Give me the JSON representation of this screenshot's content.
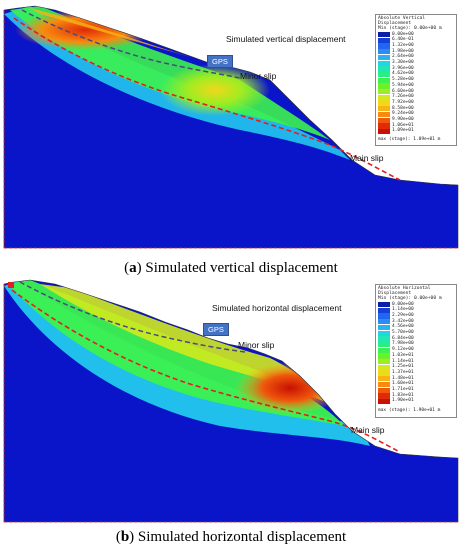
{
  "panels": [
    {
      "caption_letter": "a",
      "caption_text": "Simulated vertical displacement",
      "annotation_title": "Simulated vertical displacement",
      "gps_label": "GPS",
      "minor_slip_label": "Minor slip",
      "main_slip_label": "Main slip",
      "legend": {
        "title": "Absolute Vertical\nDisplacement\nMin (stage): 0.00e+00 m",
        "levels": [
          "0.00e+00",
          "6.40e-01",
          "1.32e+00",
          "1.98e+00",
          "2.64e+00",
          "3.30e+00",
          "3.96e+00",
          "4.62e+00",
          "5.28e+00",
          "5.94e+00",
          "6.60e+00",
          "7.26e+00",
          "7.92e+00",
          "8.58e+00",
          "9.24e+00",
          "9.90e+00",
          "1.06e+01",
          "1.09e+01"
        ],
        "footer": "max (stage): 1.09e+01 m"
      }
    },
    {
      "caption_letter": "b",
      "caption_text": "Simulated horizontal displacement",
      "annotation_title": "Simulated horizontal displacement",
      "gps_label": "GPS",
      "minor_slip_label": "Minor slip",
      "main_slip_label": "Main slip",
      "legend": {
        "title": "Absolute Horizontal\nDisplacement\nMin (stage): 0.00e+00 m",
        "levels": [
          "0.00e+00",
          "1.14e+00",
          "2.29e+00",
          "3.42e+00",
          "4.56e+00",
          "5.70e+00",
          "6.84e+00",
          "7.98e+00",
          "9.12e+00",
          "1.03e+01",
          "1.14e+01",
          "1.25e+01",
          "1.37e+01",
          "1.48e+01",
          "1.60e+01",
          "1.71e+01",
          "1.83e+01",
          "1.90e+01"
        ],
        "footer": "max (stage): 1.90e+01 m"
      }
    }
  ],
  "colors": {
    "legend_ramp": [
      "#0a1ea8",
      "#1440d8",
      "#1f66f0",
      "#2c8cf6",
      "#28b4f0",
      "#22d6e0",
      "#22e6b8",
      "#28ee86",
      "#3cf24e",
      "#6cf02a",
      "#a0ec22",
      "#d2ea1e",
      "#f0d81a",
      "#f8b414",
      "#f88a10",
      "#f0580c",
      "#e02a08",
      "#c81004"
    ],
    "slip_main": "#e02020",
    "slip_minor": "#4a4a7a",
    "rock": "#0a14c8"
  }
}
